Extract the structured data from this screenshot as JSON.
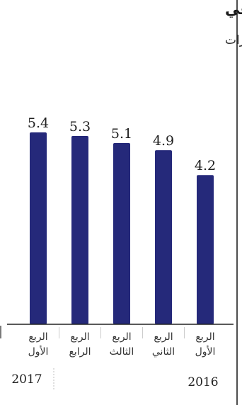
{
  "chart_data": {
    "type": "bar",
    "title": "الربح الصافي",
    "subtitle": "بمليارات الدولارات",
    "xlabel": "",
    "ylabel": "",
    "categories": [
      [
        "الربع",
        "الأول"
      ],
      [
        "الربع",
        "الثاني"
      ],
      [
        "الربع",
        "الثالث"
      ],
      [
        "الربع",
        "الرابع"
      ],
      [
        "الربع",
        "الأول"
      ]
    ],
    "values": [
      4.2,
      4.9,
      5.1,
      5.3,
      5.4
    ],
    "value_labels": [
      "4.2",
      "4.9",
      "5.1",
      "5.3",
      "5.4"
    ],
    "years": [
      "2016",
      "2017"
    ],
    "ylim": [
      0,
      5.6
    ],
    "grid": false,
    "colors": {
      "bar": "#25297a",
      "axis": "#222222",
      "divider": "#bfbfbf"
    }
  }
}
